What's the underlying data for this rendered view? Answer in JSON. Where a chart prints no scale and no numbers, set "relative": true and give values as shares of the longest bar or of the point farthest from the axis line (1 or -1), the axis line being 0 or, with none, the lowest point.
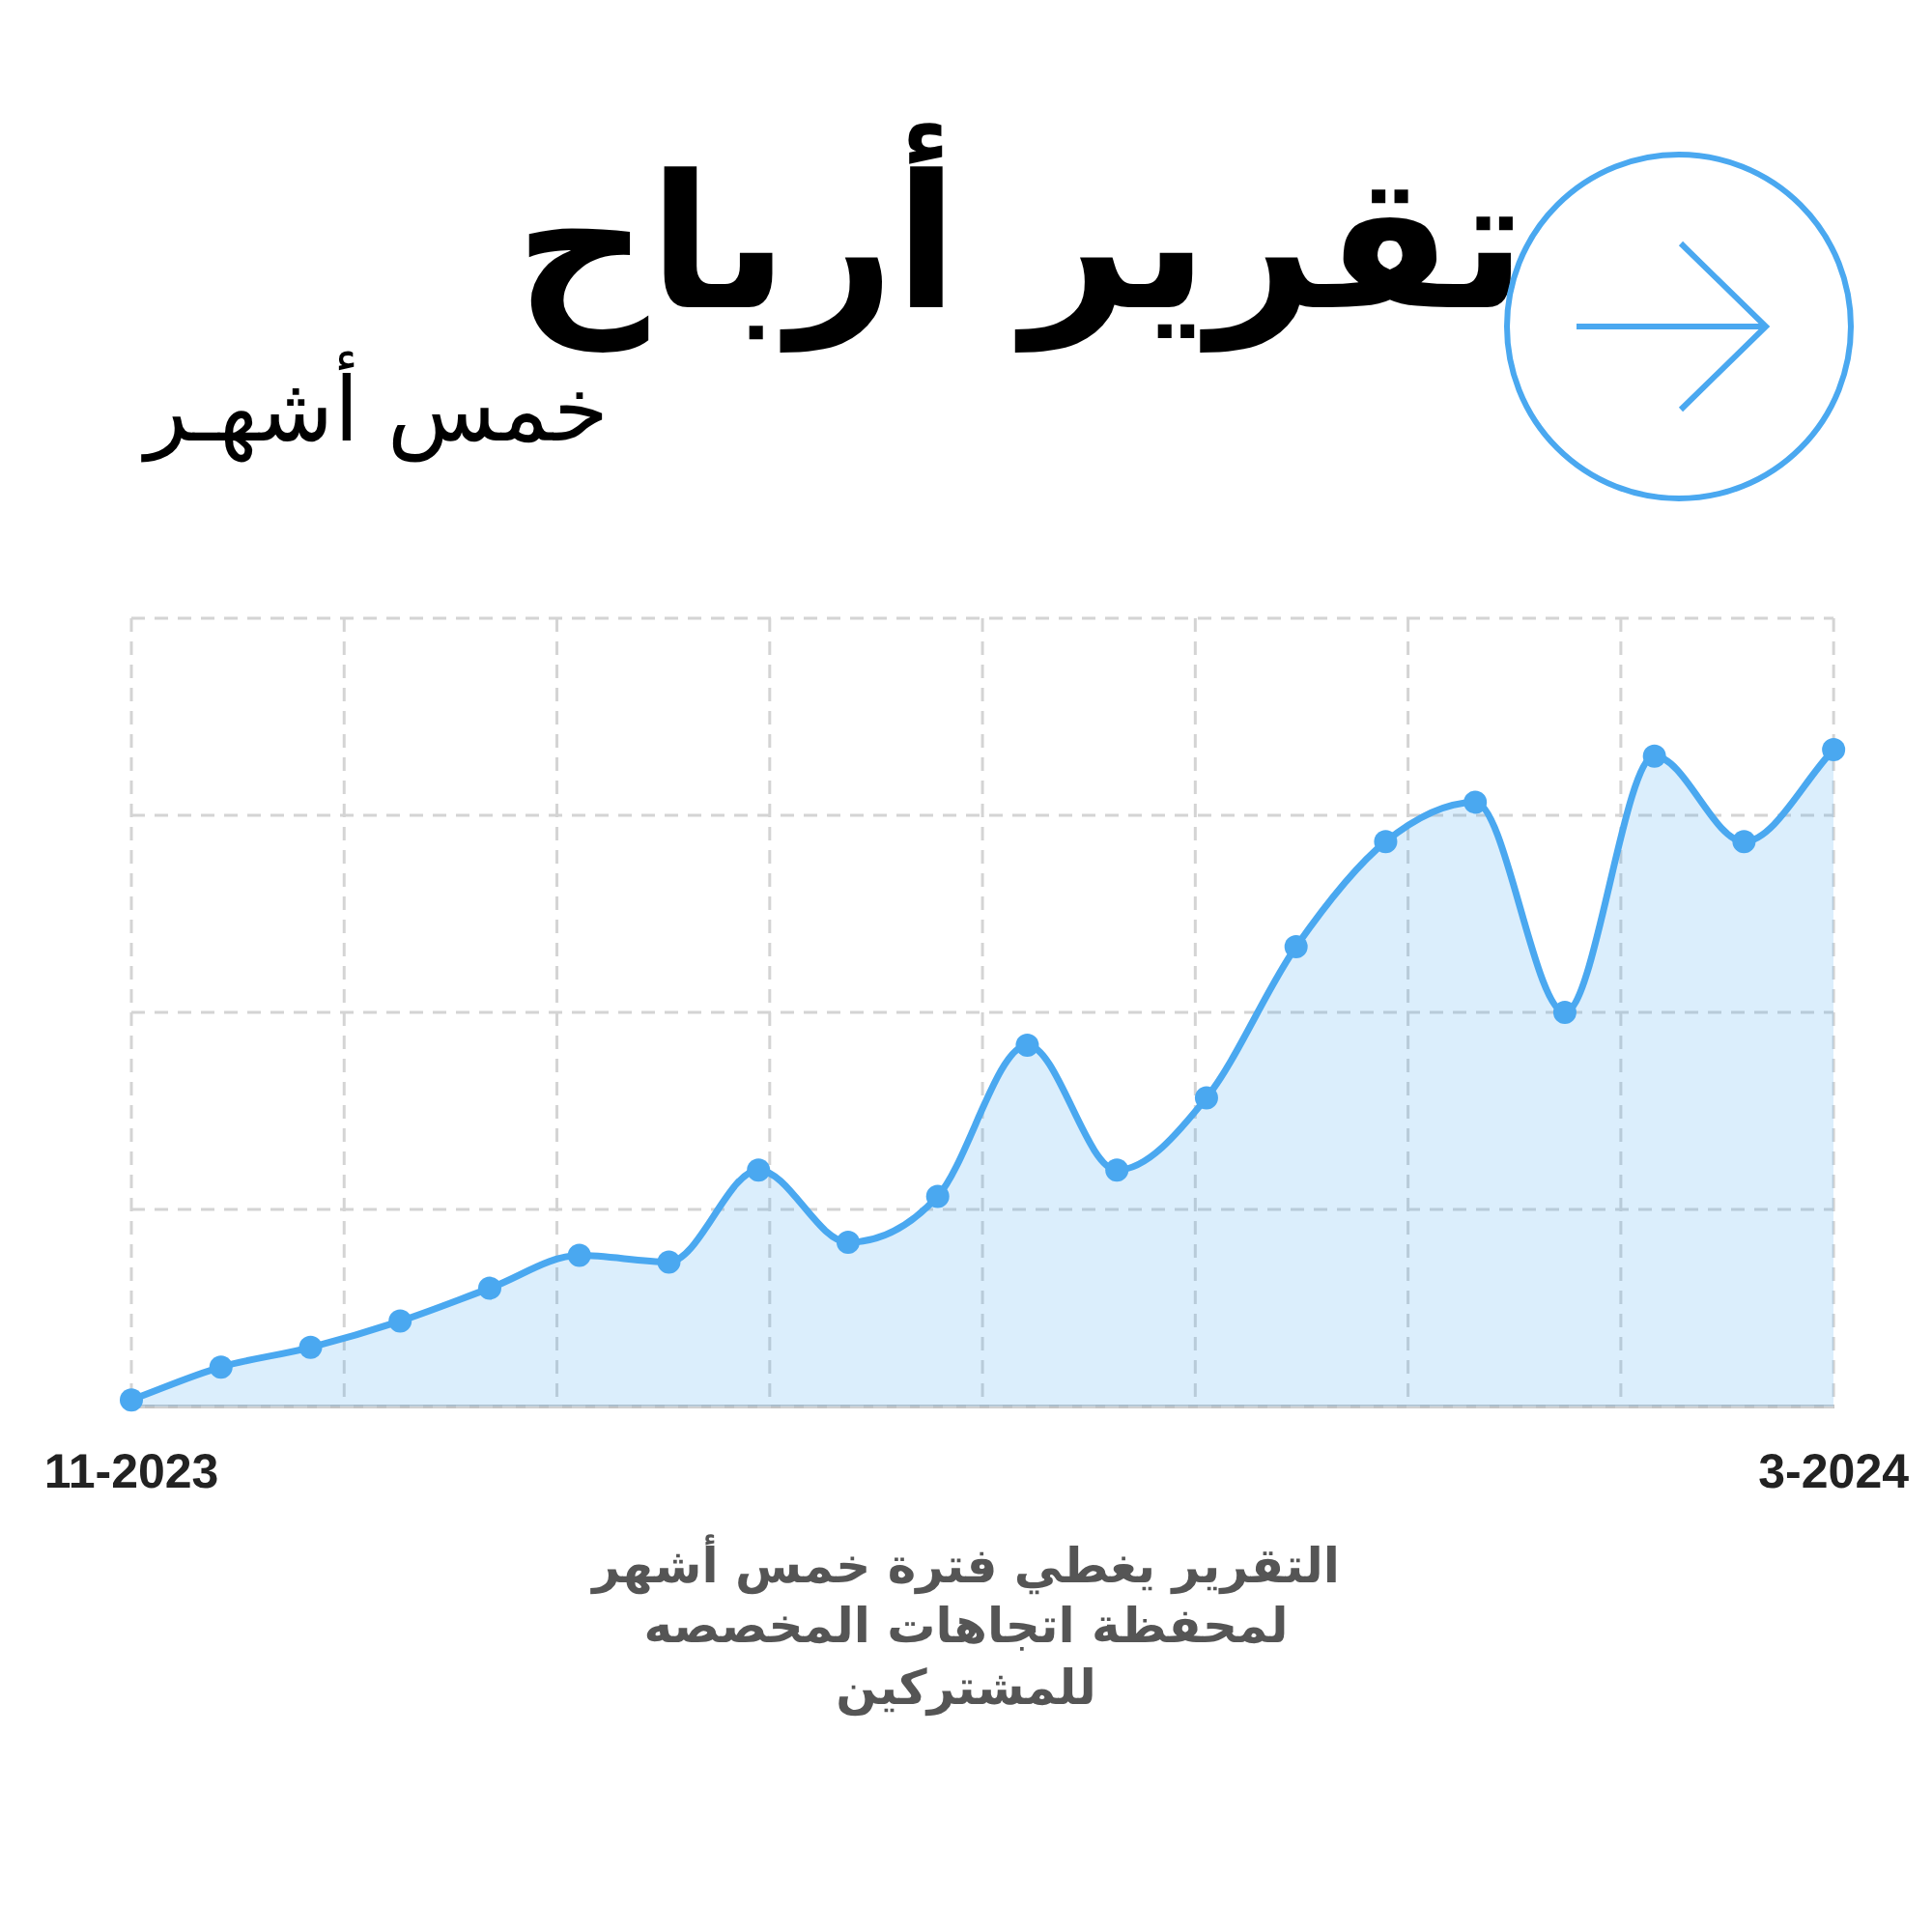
{
  "chart_data": {
    "type": "area",
    "title": "تقرير أرباح",
    "subtitle": "خمس أشهـر",
    "categories": [
      "11-2023",
      null,
      null,
      null,
      null,
      null,
      null,
      null,
      null,
      null,
      null,
      null,
      null,
      null,
      null,
      null,
      null,
      null,
      null,
      "3-2024"
    ],
    "series": [
      {
        "color": "#4aa8f0",
        "values": [
          0.01,
          0.06,
          0.09,
          0.13,
          0.18,
          0.23,
          0.22,
          0.36,
          0.25,
          0.32,
          0.55,
          0.36,
          0.47,
          0.7,
          0.86,
          0.92,
          0.6,
          0.99,
          0.86,
          1
        ]
      }
    ],
    "relative": true,
    "grid": true,
    "legend": false,
    "marker": "circle",
    "line_style": "solid",
    "annotations": [
      "التقرير يغطي فترة خمس أشهر لمحفظة اتجاهات المخصصه للمشتركين"
    ]
  }
}
